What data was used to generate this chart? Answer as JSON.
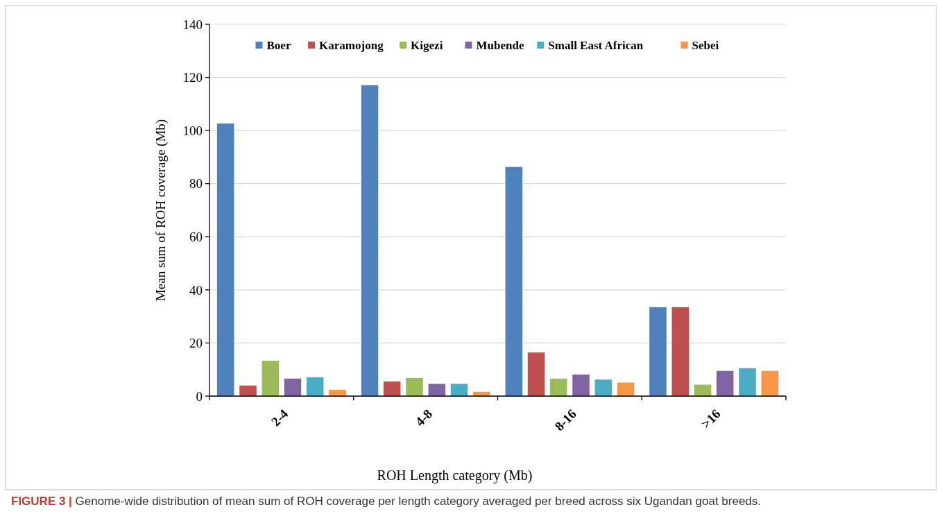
{
  "chart_data": {
    "type": "bar",
    "xlabel": "ROH Length category (Mb)",
    "ylabel": "Mean sum of ROH coverage (Mb)",
    "categories": [
      "2-4",
      "4-8",
      "8-16",
      ">16"
    ],
    "series": [
      {
        "name": "Boer",
        "color": "#4f81bd",
        "values": [
          102.7,
          117.1,
          86.4,
          33.6
        ]
      },
      {
        "name": "Karamojong",
        "color": "#c0504d",
        "values": [
          4.1,
          5.6,
          16.5,
          33.6
        ]
      },
      {
        "name": "Kigezi",
        "color": "#9bbb59",
        "values": [
          13.4,
          6.9,
          6.7,
          4.4
        ]
      },
      {
        "name": "Mubende",
        "color": "#8064a2",
        "values": [
          6.7,
          4.7,
          8.2,
          9.6
        ]
      },
      {
        "name": "Small East African",
        "color": "#4bacc6",
        "values": [
          7.2,
          4.7,
          6.3,
          10.6
        ]
      },
      {
        "name": "Sebei",
        "color": "#f79646",
        "values": [
          2.4,
          1.7,
          5.2,
          9.6
        ]
      }
    ],
    "ylim": [
      0,
      140
    ],
    "yticks": [
      0,
      20,
      40,
      60,
      80,
      100,
      120,
      140
    ],
    "grid": "y",
    "legend": "top",
    "annotations": [
      "FIGURE 3 | Genome-wide distribution of mean sum of ROH coverage per length category averaged per breed across six Ugandan goat breeds."
    ]
  }
}
